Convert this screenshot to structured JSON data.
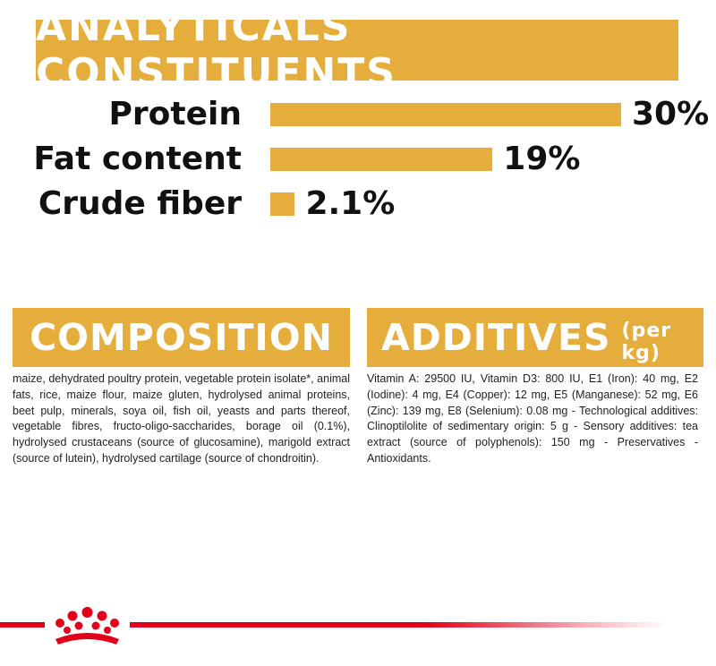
{
  "analytical": {
    "title": "ANALYTICALS CONSTITUENTS",
    "rows": [
      {
        "label": "Protein",
        "value": "30%",
        "percent": 30
      },
      {
        "label": "Fat content",
        "value": "19%",
        "percent": 19
      },
      {
        "label": "Crude fiber",
        "value": "2.1%",
        "percent": 2.1
      }
    ]
  },
  "composition": {
    "title": "COMPOSITION",
    "text": "maize, dehydrated poultry protein, vegetable protein isolate*, animal fats, rice, maize flour, maize gluten, hydrolysed animal proteins, beet pulp, minerals, soya oil, fish oil, yeasts and parts thereof, vegetable fibres, fructo-oligo-saccharides, borage oil (0.1%), hydrolysed crustaceans (source of glucosamine), marigold extract (source of lutein), hydrolysed cartilage (source of chondroitin)."
  },
  "additives": {
    "title": "ADDITIVES",
    "subtitle": "(per kg)",
    "text": "Vitamin A: 29500 IU, Vitamin D3: 800 IU, E1 (Iron): 40 mg, E2 (Iodine): 4 mg, E4 (Copper): 12 mg, E5 (Manganese): 52 mg, E6 (Zinc): 139 mg, E8 (Selenium): 0.08 mg - Technological additives: Clinoptilolite of sedimentary origin: 5 g - Sensory additives: tea extract (source of polyphenols): 150 mg - Preservatives - Antioxidants."
  },
  "colors": {
    "accent": "#e5ad3c",
    "brand_red": "#e2001a"
  },
  "logo": {
    "icon": "royal-canin-crown-icon"
  }
}
